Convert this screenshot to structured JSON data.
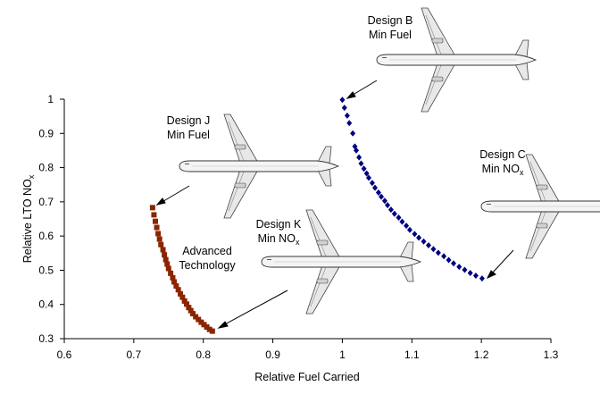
{
  "chart_data": {
    "type": "scatter",
    "title": "",
    "xlabel": "Relative Fuel Carried",
    "ylabel": {
      "main": "Relative LTO NO",
      "sub": "x"
    },
    "xlim": [
      0.6,
      1.3
    ],
    "ylim": [
      0.3,
      1.0
    ],
    "xticks": [
      "0.6",
      "0.7",
      "0.8",
      "0.9",
      "1",
      "1.1",
      "1.2",
      "1.3"
    ],
    "yticks": [
      "0.3",
      "0.4",
      "0.5",
      "0.6",
      "0.7",
      "0.8",
      "0.9",
      "1"
    ],
    "grid": false,
    "series": [
      {
        "color": "#8B2500",
        "marker": "square",
        "x": [
          0.727,
          0.729,
          0.731,
          0.733,
          0.735,
          0.737,
          0.739,
          0.742,
          0.744,
          0.746,
          0.748,
          0.75,
          0.753,
          0.756,
          0.758,
          0.761,
          0.764,
          0.767,
          0.77,
          0.773,
          0.776,
          0.779,
          0.782,
          0.785,
          0.789,
          0.793,
          0.797,
          0.801,
          0.805,
          0.809,
          0.813
        ],
        "y": [
          0.683,
          0.662,
          0.643,
          0.625,
          0.607,
          0.591,
          0.575,
          0.56,
          0.545,
          0.531,
          0.518,
          0.505,
          0.491,
          0.478,
          0.466,
          0.454,
          0.443,
          0.431,
          0.421,
          0.41,
          0.401,
          0.391,
          0.382,
          0.373,
          0.364,
          0.356,
          0.348,
          0.341,
          0.334,
          0.327,
          0.322
        ]
      },
      {
        "color": "#000080",
        "marker": "diamond",
        "x": [
          1.0,
          1.003,
          1.007,
          1.01,
          1.015,
          1.018,
          1.02,
          1.024,
          1.027,
          1.031,
          1.035,
          1.038,
          1.043,
          1.047,
          1.052,
          1.056,
          1.061,
          1.065,
          1.07,
          1.075,
          1.081,
          1.086,
          1.092,
          1.097,
          1.104,
          1.11,
          1.117,
          1.124,
          1.131,
          1.138,
          1.146,
          1.153,
          1.16,
          1.168,
          1.176,
          1.184,
          1.192,
          1.201
        ],
        "y": [
          0.998,
          0.975,
          0.952,
          0.93,
          0.9,
          0.862,
          0.85,
          0.83,
          0.812,
          0.797,
          0.783,
          0.77,
          0.755,
          0.741,
          0.727,
          0.715,
          0.703,
          0.69,
          0.677,
          0.665,
          0.654,
          0.642,
          0.63,
          0.618,
          0.606,
          0.595,
          0.584,
          0.573,
          0.562,
          0.551,
          0.541,
          0.53,
          0.52,
          0.51,
          0.501,
          0.492,
          0.484,
          0.476
        ]
      }
    ],
    "annotations": [
      {
        "id": "design-b",
        "lines": [
          "Design B",
          "Min Fuel"
        ]
      },
      {
        "id": "design-j",
        "lines": [
          "Design J",
          "Min Fuel"
        ]
      },
      {
        "id": "design-c",
        "lines": [
          "Design C",
          "Min NO"
        ],
        "subscript": "x"
      },
      {
        "id": "design-k",
        "lines": [
          "Design K",
          "Min NO"
        ],
        "subscript": "x"
      },
      {
        "id": "advanced",
        "lines": [
          "Advanced",
          "Technology"
        ]
      }
    ],
    "icons": [
      "airplane-icon",
      "airplane-icon",
      "airplane-icon",
      "airplane-icon"
    ]
  }
}
